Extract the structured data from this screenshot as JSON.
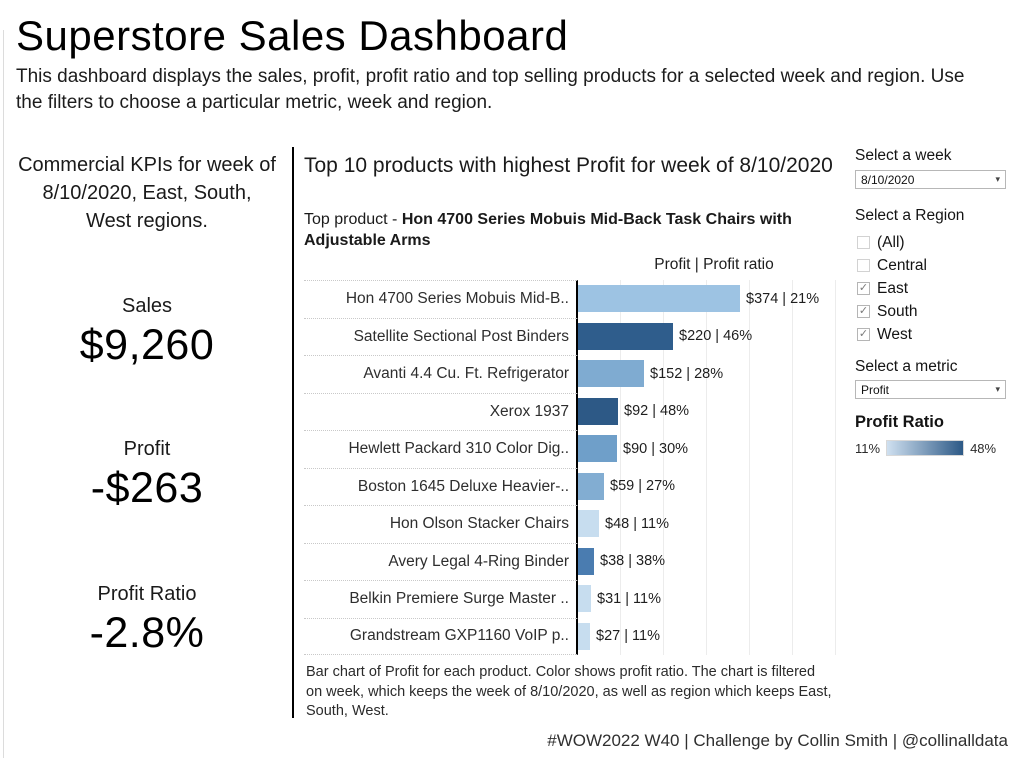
{
  "header": {
    "title": "Superstore Sales Dashboard",
    "subtitle": "This dashboard displays the sales, profit, profit ratio and top selling products for a selected week and region. Use the filters to choose a particular metric, week and region."
  },
  "kpi": {
    "intro": "Commercial KPIs for week of 8/10/2020, East, South, West regions.",
    "items": [
      {
        "label": "Sales",
        "value": "$9,260"
      },
      {
        "label": "Profit",
        "value": "-$263"
      },
      {
        "label": "Profit Ratio",
        "value": "-2.8%"
      }
    ]
  },
  "chart": {
    "title": "Top 10 products with highest Profit for week of 8/10/2020",
    "top_product_prefix": "Top product  - ",
    "top_product_name": "Hon 4700 Series Mobuis Mid-Back Task Chairs with Adjustable Arms",
    "column_header": "Profit | Profit ratio",
    "caption": "Bar chart of Profit for each product.  Color shows profit ratio. The chart is filtered on week, which keeps the week of 8/10/2020, as well as region which keeps East, South, West."
  },
  "chart_data": {
    "type": "bar",
    "orientation": "horizontal",
    "title": "Top 10 products with highest Profit for week of 8/10/2020",
    "categories": [
      "Hon 4700 Series Mobuis Mid-B..",
      "Satellite Sectional Post Binders",
      "Avanti 4.4 Cu. Ft. Refrigerator",
      "Xerox 1937",
      "Hewlett Packard 310 Color Dig..",
      "Boston 1645 Deluxe Heavier-..",
      "Hon Olson Stacker Chairs",
      "Avery Legal 4-Ring Binder",
      "Belkin Premiere Surge Master ..",
      "Grandstream GXP1160 VoIP p.."
    ],
    "series": [
      {
        "name": "Profit",
        "unit": "$",
        "values": [
          374,
          220,
          152,
          92,
          90,
          59,
          48,
          38,
          31,
          27
        ]
      },
      {
        "name": "Profit ratio",
        "unit": "%",
        "values": [
          21,
          46,
          28,
          48,
          30,
          27,
          11,
          38,
          11,
          11
        ]
      }
    ],
    "bar_labels": [
      "$374 | 21%",
      "$220 | 46%",
      "$152 | 28%",
      "$92 | 48%",
      "$90 | 30%",
      "$59 | 27%",
      "$48 | 11%",
      "$38 | 38%",
      "$31 | 11%",
      "$27 | 11%"
    ],
    "bar_colors": [
      "#9dc3e3",
      "#2f5d8c",
      "#7fabd1",
      "#2d5986",
      "#6f9fc9",
      "#82add2",
      "#c7ddef",
      "#4a7cb0",
      "#c7ddef",
      "#c7ddef"
    ],
    "xlim": [
      0,
      620
    ],
    "gridlines": "vertical every $100",
    "legend_position": "right",
    "color_encoding": {
      "field": "Profit ratio",
      "min_label": "11%",
      "max_label": "48%",
      "min_color": "#cfe0f0",
      "max_color": "#2d5986"
    }
  },
  "filters": {
    "week": {
      "label": "Select a week",
      "selected": "8/10/2020"
    },
    "region": {
      "label": "Select a Region",
      "options": [
        {
          "label": "(All)",
          "checked": false
        },
        {
          "label": "Central",
          "checked": false
        },
        {
          "label": "East",
          "checked": true
        },
        {
          "label": "South",
          "checked": true
        },
        {
          "label": "West",
          "checked": true
        }
      ]
    },
    "metric": {
      "label": "Select a metric",
      "selected": "Profit"
    }
  },
  "legend": {
    "title": "Profit Ratio",
    "min_label": "11%",
    "max_label": "48%"
  },
  "footer": {
    "credit": "#WOW2022 W40 | Challenge by Collin Smith | @collinalldata"
  }
}
